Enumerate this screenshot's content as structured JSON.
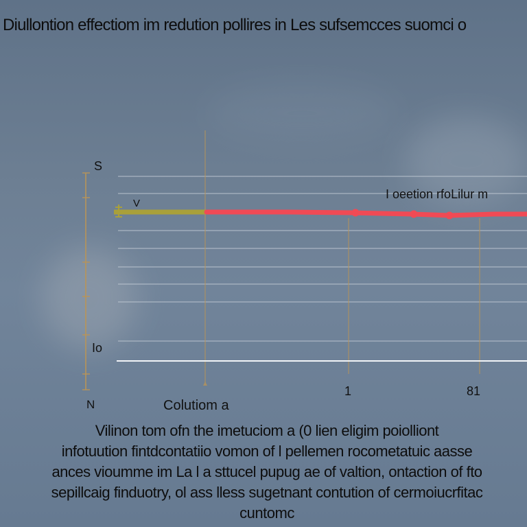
{
  "title": "Diullontion effectiom im redution pollires in Les sufsemcces suomci o",
  "chart_data": {
    "type": "line",
    "xlabel": "Colutiom a",
    "y_top_label": "S",
    "y_bottom_label": "Io",
    "corner_label": "N",
    "x_ticks": [
      "1",
      "81"
    ],
    "series_label": "I oeetion rfoLilur m",
    "marker_label": "V",
    "colors": {
      "series_start": "#a9a03a",
      "series_main": "#f04a55",
      "axis": "#b89458",
      "grid": "#c7cfd8",
      "baseline": "#f2f5f8"
    }
  },
  "caption": {
    "lines": [
      "Vilinon tom ofn the imetuciom a (0 lien eligim poiolliont",
      "infotuution fintdcontatiio vomon of l pellemen rocometatuic aasse",
      "ances vioumme im La l a sttucel pupug ae of valtion, ontaction of fto",
      "sepillcaig finduotry, ol ass lless sugetnant contution of cermoiucrfitac",
      "cuntomc"
    ]
  }
}
